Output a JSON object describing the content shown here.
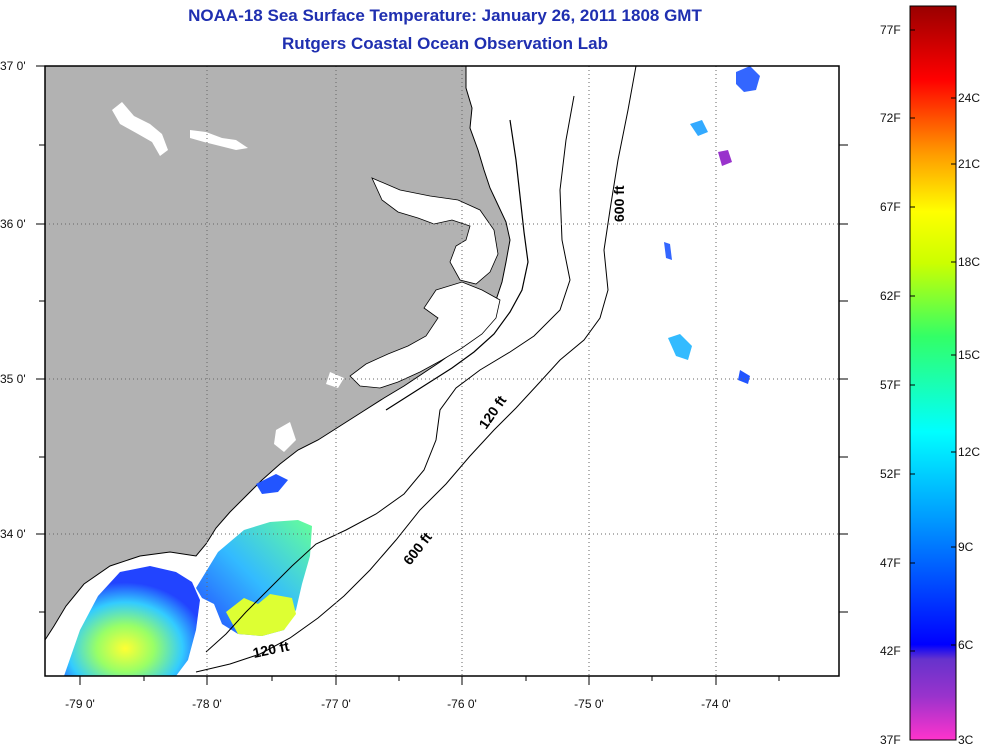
{
  "header": {
    "title": "NOAA-18 Sea Surface Temperature:  January 26, 2011 1808 GMT",
    "subtitle": "Rutgers Coastal Ocean Observation Lab"
  },
  "axes": {
    "lat_labels": [
      "37 0'",
      "36 0'",
      "35 0'",
      "34 0'"
    ],
    "lon_labels": [
      "-79 0'",
      "-78 0'",
      "-77 0'",
      "-76 0'",
      "-75 0'",
      "-74 0'"
    ]
  },
  "isobaths": {
    "label_120_north": "120 ft",
    "label_600_north": "600 ft",
    "label_600_south": "600 ft",
    "label_120_south": "120 ft"
  },
  "colorbar": {
    "fahrenheit": [
      "77F",
      "72F",
      "67F",
      "62F",
      "57F",
      "52F",
      "47F",
      "42F",
      "37F"
    ],
    "celsius": [
      "24C",
      "21C",
      "18C",
      "15C",
      "12C",
      "9C",
      "6C",
      "3C"
    ]
  },
  "colors": {
    "title": "#1f2fb0",
    "land": "#b2b2b2",
    "ocean": "#ffffff",
    "grid": "#666666"
  }
}
